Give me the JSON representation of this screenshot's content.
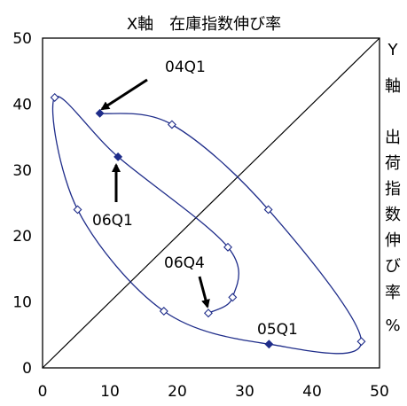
{
  "chart_data": {
    "type": "scatter",
    "title": "X軸　在庫指数伸び率",
    "xlabel": "",
    "ylabel_chars": [
      "Y",
      "軸",
      "出",
      "荷",
      "指",
      "数",
      "伸",
      "び",
      "率",
      "%"
    ],
    "xlim": [
      0,
      50
    ],
    "ylim": [
      0,
      50
    ],
    "xticks": [
      "0",
      "10",
      "20",
      "30",
      "40",
      "50"
    ],
    "yticks": [
      "0",
      "10",
      "20",
      "30",
      "40",
      "50"
    ],
    "grid": false,
    "legend": "none",
    "colors": {
      "line": "#1f2d8a",
      "marker": "#1f2d8a",
      "diagonal": "#000000"
    },
    "diagonal": [
      [
        0,
        0
      ],
      [
        50,
        50
      ]
    ],
    "series": [
      {
        "points": [
          {
            "x": 8.5,
            "y": 38.6,
            "filled": true
          },
          {
            "x": 19.2,
            "y": 36.9,
            "filled": false
          },
          {
            "x": 33.5,
            "y": 24.0,
            "filled": false
          },
          {
            "x": 47.3,
            "y": 4.0,
            "filled": false
          },
          {
            "x": 33.6,
            "y": 3.6,
            "filled": true
          },
          {
            "x": 18.0,
            "y": 8.6,
            "filled": false
          },
          {
            "x": 5.2,
            "y": 24.0,
            "filled": false
          },
          {
            "x": 1.8,
            "y": 41.0,
            "filled": false
          },
          {
            "x": 11.2,
            "y": 32.0,
            "filled": true
          },
          {
            "x": 27.5,
            "y": 18.3,
            "filled": false
          },
          {
            "x": 28.2,
            "y": 10.7,
            "filled": false
          },
          {
            "x": 24.6,
            "y": 8.3,
            "filled": false
          }
        ]
      }
    ],
    "annotations": [
      {
        "text": "04Q1",
        "point_index": 0
      },
      {
        "text": "06Q1",
        "point_index": 8
      },
      {
        "text": "06Q4",
        "point_index": 11
      },
      {
        "text": "05Q1",
        "point_index": 4
      }
    ]
  }
}
